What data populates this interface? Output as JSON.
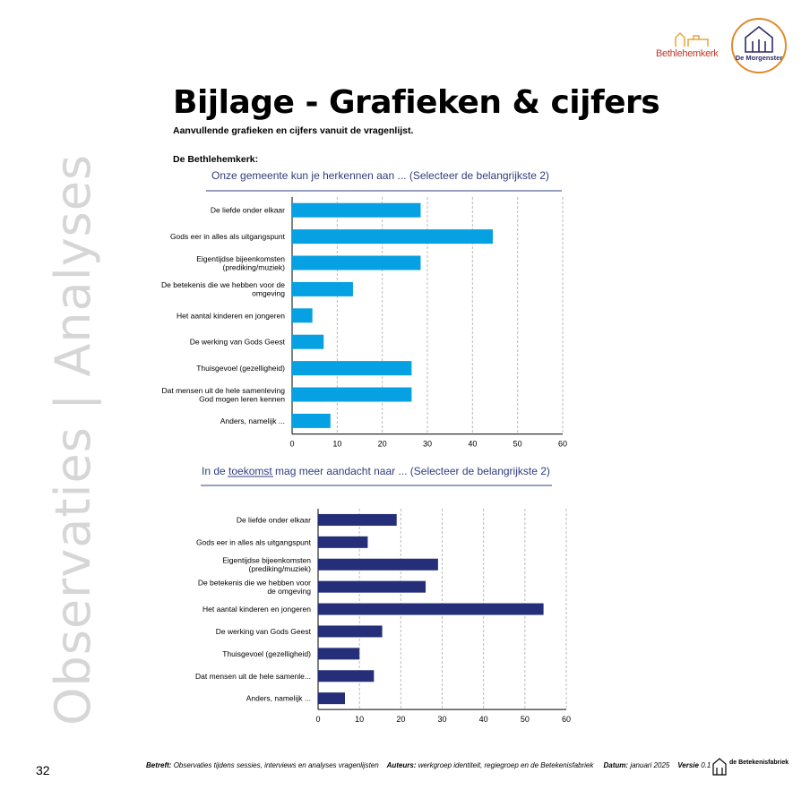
{
  "page": {
    "side_title": "Observaties | Analyses",
    "title": "Bijlage - Grafieken & cijfers",
    "subtitle": "Aanvullende grafieken en cijfers vanuit de vragenlijst.",
    "section": "De Bethlehemkerk:",
    "page_number": "32"
  },
  "logos": {
    "bethlehemkerk": "Bethlehemkerk",
    "morgenster": "De Morgenster",
    "betekenisfabriek": "de Betekenisfabriek"
  },
  "footer": {
    "betreft_label": "Betreft:",
    "betreft_text": "Observaties tijdens sessies, interviews en analyses vragenlijsten",
    "auteurs_label": "Auteurs:",
    "auteurs_text": "werkgroep identiteit, regiegroep en de Betekenisfabriek",
    "datum_label": "Datum:",
    "datum_text": "januari 2025",
    "versie_label": "Versie",
    "versie_text": "0.1"
  },
  "colors": {
    "chart1": "#05a1e2",
    "chart2": "#252e78",
    "title_text": "#2f3c7e"
  },
  "chart_data": [
    {
      "type": "bar",
      "orientation": "horizontal",
      "title": "Onze gemeente kun je herkennen aan ... (Selecteer de belangrijkste 2)",
      "categories": [
        "De liefde onder elkaar",
        "Gods eer in alles als uitgangspunt",
        "Eigentijdse bijeenkomsten (prediking/muziek)",
        "De betekenis die we hebben voor de omgeving",
        "Het aantal kinderen en jongeren",
        "De werking van Gods Geest",
        "Thuisgevoel (gezelligheid)",
        "Dat mensen uit de hele samenleving God mogen leren kennen",
        "Anders, namelijk ..."
      ],
      "category_lines": [
        [
          "De liefde onder elkaar"
        ],
        [
          "Gods eer in alles als uitgangspunt"
        ],
        [
          "Eigentijdse bijeenkomsten",
          "(prediking/muziek)"
        ],
        [
          "De betekenis die we hebben voor de",
          "omgeving"
        ],
        [
          "Het aantal kinderen en jongeren"
        ],
        [
          "De werking van Gods Geest"
        ],
        [
          "Thuisgevoel (gezelligheid)"
        ],
        [
          "Dat mensen uit de hele samenleving",
          "God mogen leren kennen"
        ],
        [
          "Anders, namelijk ..."
        ]
      ],
      "values": [
        28.5,
        44.5,
        28.5,
        13.5,
        4.5,
        7,
        26.5,
        26.5,
        8.5
      ],
      "xlim": [
        0,
        60
      ],
      "xticks": [
        0,
        10,
        20,
        30,
        40,
        50,
        60
      ],
      "grid": "vertical-dashed"
    },
    {
      "type": "bar",
      "orientation": "horizontal",
      "title": "In de toekomst mag meer aandacht naar ... (Selecteer de belangrijkste 2)",
      "categories": [
        "De liefde onder elkaar",
        "Gods eer in alles als uitgangspunt",
        "Eigentijdse bijeenkomsten (prediking/muziek)",
        "De betekenis die we hebben voor de omgeving",
        "Het aantal kinderen en jongeren",
        "De werking van Gods Geest",
        "Thuisgevoel (gezelligheid)",
        "Dat mensen uit de hele samenle...",
        "Anders, namelijk ..."
      ],
      "category_lines": [
        [
          "De liefde onder elkaar"
        ],
        [
          "Gods eer in alles als uitgangspunt"
        ],
        [
          "Eigentijdse bijeenkomsten",
          "(prediking/muziek)"
        ],
        [
          "De betekenis die we hebben voor",
          "de omgeving"
        ],
        [
          "Het aantal kinderen en jongeren"
        ],
        [
          "De werking van Gods Geest"
        ],
        [
          "Thuisgevoel (gezelligheid)"
        ],
        [
          "Dat mensen uit de hele samenle..."
        ],
        [
          "Anders, namelijk ..."
        ]
      ],
      "values": [
        19,
        12,
        29,
        26,
        54.5,
        15.5,
        10,
        13.5,
        6.5
      ],
      "xlim": [
        0,
        60
      ],
      "xticks": [
        0,
        10,
        20,
        30,
        40,
        50,
        60
      ],
      "grid": "vertical-dashed"
    }
  ]
}
